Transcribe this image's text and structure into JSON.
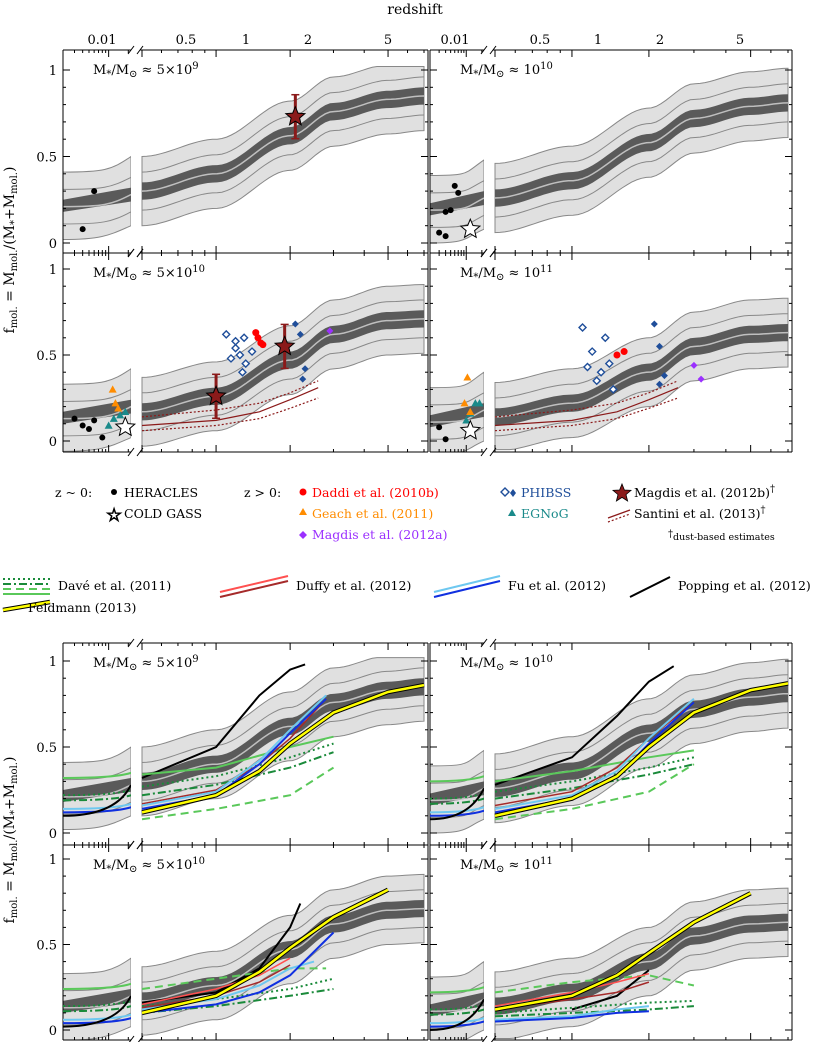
{
  "chart_data": {
    "type": "line",
    "title": "redshift",
    "xlabel": "redshift",
    "ylabel": "f_mol. = M_mol./(M_* + M_mol.)",
    "ylabel_parts": [
      "f",
      "mol.",
      " = M",
      "mol.",
      "/(M",
      "*",
      "+M",
      "mol.",
      ")"
    ],
    "x_ticks_local": [
      "0.01"
    ],
    "x_ticks_highz": [
      "0.5",
      "1",
      "2",
      "5"
    ],
    "y_ticks": [
      "0",
      "0.5",
      "1"
    ],
    "ylim": [
      0,
      1.05
    ],
    "mass_labels": [
      {
        "base": "M",
        "sub1": "*",
        "slash": "/M",
        "sub2": "⊙",
        "approx": " ≈ ",
        "value": "5×10",
        "exp": "9"
      },
      {
        "base": "M",
        "sub1": "*",
        "slash": "/M",
        "sub2": "⊙",
        "approx": " ≈ ",
        "value": "10",
        "exp": "10"
      },
      {
        "base": "M",
        "sub1": "*",
        "slash": "/M",
        "sub2": "⊙",
        "approx": " ≈ ",
        "value": "5×10",
        "exp": "10"
      },
      {
        "base": "M",
        "sub1": "*",
        "slash": "/M",
        "sub2": "⊙",
        "approx": " ≈ ",
        "value": "10",
        "exp": "11"
      }
    ],
    "model_bands": [
      {
        "panel": 0,
        "z": [
          0.5,
          1,
          2,
          3,
          5,
          7
        ],
        "median": [
          0.3,
          0.4,
          0.62,
          0.76,
          0.83,
          0.85
        ],
        "inner": 0.05,
        "mid": 0.11,
        "outer": 0.2
      },
      {
        "panel": 1,
        "z": [
          0.5,
          1,
          2,
          3,
          5,
          7
        ],
        "median": [
          0.26,
          0.36,
          0.58,
          0.72,
          0.79,
          0.81
        ],
        "inner": 0.05,
        "mid": 0.11,
        "outer": 0.2
      },
      {
        "panel": 2,
        "z": [
          0.5,
          1,
          2,
          3,
          5,
          7
        ],
        "median": [
          0.17,
          0.26,
          0.47,
          0.62,
          0.7,
          0.71
        ],
        "inner": 0.05,
        "mid": 0.11,
        "outer": 0.2
      },
      {
        "panel": 3,
        "z": [
          0.5,
          1,
          2,
          3,
          5,
          7
        ],
        "median": [
          0.14,
          0.22,
          0.4,
          0.55,
          0.62,
          0.63
        ],
        "inner": 0.05,
        "mid": 0.11,
        "outer": 0.2
      }
    ],
    "local_median": [
      0.22,
      0.2,
      0.14,
      0.12
    ],
    "data_points": {
      "heracles": [
        [
          [
            0.004,
            0.08
          ],
          [
            0.006,
            0.3
          ]
        ],
        [
          [
            0.003,
            0.06
          ],
          [
            0.004,
            0.18
          ],
          [
            0.005,
            0.19
          ],
          [
            0.006,
            0.33
          ],
          [
            0.007,
            0.29
          ],
          [
            0.004,
            0.04
          ]
        ],
        [
          [
            0.003,
            0.13
          ],
          [
            0.004,
            0.09
          ],
          [
            0.005,
            0.07
          ],
          [
            0.006,
            0.12
          ],
          [
            0.008,
            0.02
          ]
        ],
        [
          [
            0.003,
            0.08
          ],
          [
            0.004,
            0.01
          ]
        ]
      ],
      "cold_gass": [
        [],
        [
          [
            0.012,
            0.08
          ]
        ],
        [
          [
            0.018,
            0.08
          ]
        ],
        [
          [
            0.012,
            0.06
          ]
        ]
      ],
      "daddi": [
        [],
        [],
        [
          [
            1.45,
            0.63
          ],
          [
            1.48,
            0.6
          ],
          [
            1.52,
            0.57
          ],
          [
            1.55,
            0.56
          ]
        ],
        [
          [
            1.5,
            0.5
          ],
          [
            1.6,
            0.52
          ]
        ]
      ],
      "geach": [
        [],
        [],
        [
          [
            0.38,
            0.3
          ],
          [
            0.39,
            0.22
          ],
          [
            0.4,
            0.19
          ]
        ],
        [
          [
            0.38,
            0.22
          ],
          [
            0.39,
            0.37
          ],
          [
            0.4,
            0.17
          ]
        ]
      ],
      "magdis_a": [
        [],
        [],
        [
          [
            2.9,
            0.64
          ]
        ],
        [
          [
            3.0,
            0.44
          ],
          [
            3.2,
            0.36
          ]
        ]
      ],
      "phibss_open": [
        [],
        [],
        [
          [
            1.1,
            0.62
          ],
          [
            1.2,
            0.54
          ],
          [
            1.25,
            0.5
          ],
          [
            1.3,
            0.6
          ],
          [
            1.32,
            0.45
          ],
          [
            1.4,
            0.52
          ],
          [
            1.2,
            0.58
          ],
          [
            1.15,
            0.48
          ],
          [
            1.28,
            0.4
          ]
        ],
        [
          [
            1.1,
            0.66
          ],
          [
            1.2,
            0.52
          ],
          [
            1.3,
            0.4
          ],
          [
            1.35,
            0.6
          ],
          [
            1.4,
            0.45
          ],
          [
            1.25,
            0.35
          ],
          [
            1.45,
            0.3
          ],
          [
            1.15,
            0.43
          ]
        ]
      ],
      "phibss_filled": [
        [],
        [],
        [
          [
            2.1,
            0.68
          ],
          [
            2.2,
            0.62
          ],
          [
            2.3,
            0.42
          ],
          [
            2.25,
            0.36
          ]
        ],
        [
          [
            2.1,
            0.68
          ],
          [
            2.2,
            0.55
          ],
          [
            2.3,
            0.38
          ],
          [
            2.2,
            0.33
          ]
        ]
      ],
      "egnog": [
        [],
        [],
        [
          [
            0.01,
            0.09
          ],
          [
            0.012,
            0.13
          ],
          [
            0.015,
            0.15
          ],
          [
            0.018,
            0.17
          ]
        ],
        [
          [
            0.01,
            0.12
          ],
          [
            0.012,
            0.16
          ],
          [
            0.015,
            0.22
          ],
          [
            0.018,
            0.22
          ]
        ]
      ],
      "magdis_b": [
        [
          [
            2.1,
            0.73
          ]
        ],
        [],
        [
          [
            1.0,
            0.26
          ],
          [
            1.9,
            0.55
          ]
        ],
        []
      ]
    },
    "legend": {
      "local_label": "z ~ 0:",
      "highz_label": "z > 0:",
      "heracles": "HERACLES",
      "cold_gass": "COLD GASS",
      "daddi": "Daddi et al. (2010b)",
      "geach": "Geach et al. (2011)",
      "magdis_a": "Magdis et al. (2012a)",
      "phibss": "PHIBSS",
      "egnog": "EGNoG",
      "magdis_b": "Magdis et al. (2012b)",
      "santini": "Santini et al. (2013)",
      "dagger": "†",
      "footnote": "dust-based estimates"
    },
    "model_legend": {
      "dave": "Davé et al. (2011)",
      "duffy": "Duffy et al. (2012)",
      "fu": "Fu et al. (2012)",
      "popping": "Popping et al. (2012)",
      "feldmann": "Feldmann (2013)"
    },
    "colors": {
      "band_outer": "#e0e0e0",
      "band_mid": "#bdbdbd",
      "band_inner": "#5a5a5a",
      "median_line": "#bfbfbf",
      "daddi": "#ff0000",
      "geach": "#ff8c00",
      "magdis_a": "#9b30ff",
      "phibss": "#1f4e9a",
      "egnog": "#1a8a8a",
      "magdis_b": "#8b1a1a",
      "santini": "#8b1a1a",
      "dave": "#1a8a3a",
      "dave_light": "#5ac85a",
      "duffy": "#a52a2a",
      "fu_light": "#6ec8f0",
      "fu": "#1030e0",
      "popping": "#000000",
      "feldmann": "#ffff00"
    }
  }
}
